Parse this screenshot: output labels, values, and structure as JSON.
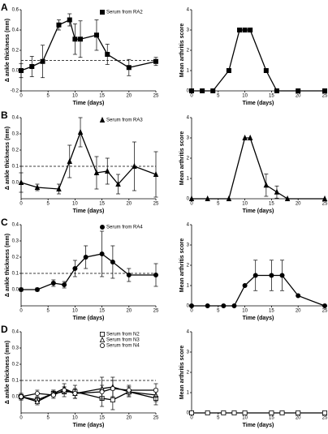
{
  "chart_data": [
    {
      "type": "line",
      "panel_label": "A",
      "x_label": "Time (days)",
      "y_label": "Δ ankle thickness (mm)",
      "xlim": [
        0,
        25
      ],
      "xticks": [
        0,
        5,
        10,
        15,
        20,
        25
      ],
      "ylim": [
        -0.2,
        0.6
      ],
      "yticks": [
        -0.2,
        {
          "value": 0,
          "label": "0.0"
        },
        0.2,
        0.4,
        0.6
      ],
      "hline": 0.1,
      "legend": "top-right",
      "x": [
        0,
        2,
        4,
        7,
        9,
        10,
        11,
        14,
        16,
        20,
        25
      ],
      "series": [
        {
          "name": "Serum from RA2",
          "color": "#000000",
          "marker": "square",
          "marker_fill": "#000000",
          "values": [
            0.0,
            0.04,
            0.09,
            0.45,
            0.5,
            0.31,
            0.31,
            0.35,
            0.16,
            0.03,
            0.09
          ],
          "errors": [
            0.07,
            0.1,
            0.16,
            0.05,
            0.06,
            0.15,
            0.18,
            0.15,
            0.1,
            0.08,
            0.04
          ]
        }
      ]
    },
    {
      "type": "line",
      "x_label": "Time (days)",
      "y_label": "Mean arthritis score",
      "xlim": [
        0,
        25
      ],
      "xticks": [
        0,
        5,
        10,
        15,
        20,
        25
      ],
      "ylim": [
        0,
        4
      ],
      "yticks": [
        0,
        1,
        2,
        3,
        4
      ],
      "x": [
        0,
        2,
        4,
        7,
        9,
        10,
        11,
        14,
        16,
        20,
        25
      ],
      "series": [
        {
          "color": "#000000",
          "marker": "square",
          "marker_fill": "#000000",
          "values": [
            0,
            0,
            0,
            1,
            3,
            3,
            3,
            1,
            0,
            0,
            0
          ]
        }
      ]
    },
    {
      "type": "line",
      "panel_label": "B",
      "x_label": "Time (days)",
      "y_label": "Δ ankle thickness (mm)",
      "xlim": [
        0,
        25
      ],
      "xticks": [
        0,
        5,
        10,
        15,
        20,
        25
      ],
      "ylim": [
        -0.1,
        0.4
      ],
      "yticks": [
        {
          "value": 0,
          "label": "0.0"
        },
        0.1,
        0.2,
        0.3,
        0.4
      ],
      "hline": 0.1,
      "legend": "top-right",
      "x": [
        0,
        3,
        7,
        9,
        11,
        14,
        16,
        18,
        21,
        25
      ],
      "series": [
        {
          "name": "Serum from RA3",
          "color": "#000000",
          "marker": "triangle",
          "marker_fill": "#000000",
          "values": [
            0.0,
            -0.03,
            -0.04,
            0.13,
            0.31,
            0.06,
            0.07,
            -0.01,
            0.1,
            0.05
          ],
          "errors": [
            0.06,
            0.02,
            0.03,
            0.1,
            0.09,
            0.1,
            0.08,
            0.06,
            0.15,
            0.14
          ]
        }
      ]
    },
    {
      "type": "line",
      "x_label": "Time (days)",
      "y_label": "Mean arthritis score",
      "xlim": [
        0,
        25
      ],
      "xticks": [
        0,
        5,
        10,
        15,
        20,
        25
      ],
      "ylim": [
        0,
        4
      ],
      "yticks": [
        0,
        1,
        2,
        3,
        4
      ],
      "x": [
        0,
        3,
        7,
        10,
        11,
        14,
        16,
        18,
        25
      ],
      "series": [
        {
          "color": "#000000",
          "marker": "triangle",
          "marker_fill": "#000000",
          "values": [
            0,
            0,
            0,
            3,
            3,
            0.67,
            0.33,
            0,
            0
          ],
          "errors": [
            null,
            null,
            null,
            null,
            null,
            0.55,
            0.3,
            null,
            null
          ]
        }
      ]
    },
    {
      "type": "line",
      "panel_label": "C",
      "x_label": "Time (days)",
      "y_label": "Δ ankle thickness (mm)",
      "xlim": [
        0,
        25
      ],
      "xticks": [
        0,
        5,
        10,
        15,
        20,
        25
      ],
      "ylim": [
        -0.1,
        0.4
      ],
      "yticks": [
        {
          "value": 0,
          "label": "0.0"
        },
        0.1,
        0.2,
        0.3,
        0.4
      ],
      "hline": 0.1,
      "legend": "top-right",
      "x": [
        0,
        3,
        6,
        8,
        10,
        12,
        15,
        17,
        20,
        25
      ],
      "series": [
        {
          "name": "Serum from RA4",
          "color": "#000000",
          "marker": "circle",
          "marker_fill": "#000000",
          "values": [
            0.0,
            0.0,
            0.04,
            0.03,
            0.13,
            0.2,
            0.22,
            0.17,
            0.09,
            0.09
          ],
          "errors": [
            0.01,
            0.01,
            0.02,
            0.02,
            0.05,
            0.07,
            0.14,
            0.1,
            0.04,
            0.07
          ]
        }
      ]
    },
    {
      "type": "line",
      "x_label": "Time (days)",
      "y_label": "Mean arthritis score",
      "xlim": [
        0,
        25
      ],
      "xticks": [
        0,
        5,
        10,
        15,
        20,
        25
      ],
      "ylim": [
        0,
        4
      ],
      "yticks": [
        0,
        1,
        2,
        3,
        4
      ],
      "x": [
        0,
        3,
        6,
        8,
        10,
        12,
        15,
        17,
        20,
        25
      ],
      "series": [
        {
          "color": "#000000",
          "marker": "circle",
          "marker_fill": "#000000",
          "values": [
            0,
            0,
            0,
            0,
            1,
            1.5,
            1.5,
            1.5,
            0.5,
            0
          ],
          "errors": [
            null,
            null,
            null,
            null,
            null,
            0.75,
            0.75,
            0.75,
            null,
            null
          ]
        }
      ]
    },
    {
      "type": "line",
      "panel_label": "D",
      "x_label": "Time (days)",
      "y_label": "Δ ankle thickness (mm)",
      "xlim": [
        0,
        25
      ],
      "xticks": [
        0,
        5,
        10,
        15,
        20,
        25
      ],
      "ylim": [
        -0.1,
        0.4
      ],
      "yticks": [
        {
          "value": 0,
          "label": "0.0"
        },
        0.1,
        0.2,
        0.3,
        0.4
      ],
      "hline": 0.1,
      "legend": "top-right",
      "x": [
        0,
        3,
        6,
        8,
        10,
        15,
        17,
        20,
        25
      ],
      "series": [
        {
          "name": "Serum from N2",
          "color": "#000000",
          "marker": "square",
          "marker_fill": "#ffffff",
          "values": [
            0.0,
            -0.02,
            0.02,
            0.03,
            0.03,
            -0.01,
            -0.02,
            0.03,
            -0.01
          ],
          "errors": [
            0.02,
            0.02,
            0.02,
            0.03,
            0.04,
            0.05,
            0.06,
            0.03,
            0.04
          ]
        },
        {
          "name": "Serum from N3",
          "color": "#000000",
          "marker": "triangle",
          "marker_fill": "#ffffff",
          "values": [
            0.0,
            -0.03,
            0.02,
            0.05,
            0.02,
            0.05,
            0.06,
            0.03,
            0.01
          ],
          "errors": [
            0.02,
            0.02,
            0.02,
            0.03,
            0.03,
            0.07,
            0.06,
            0.03,
            0.04
          ]
        },
        {
          "name": "Serum from N4",
          "color": "#000000",
          "marker": "circle",
          "marker_fill": "#ffffff",
          "values": [
            0.0,
            0.02,
            0.01,
            0.04,
            0.02,
            0.03,
            0.05,
            0.04,
            0.04
          ],
          "errors": [
            0.02,
            0.02,
            0.02,
            0.02,
            0.03,
            0.04,
            0.05,
            0.03,
            0.04
          ]
        }
      ]
    },
    {
      "type": "line",
      "x_label": "Time (days)",
      "y_label": "Mean arthritis score",
      "xlim": [
        0,
        25
      ],
      "xticks": [
        0,
        5,
        10,
        15,
        20,
        25
      ],
      "ylim": [
        0,
        4
      ],
      "yticks": [
        0,
        1,
        2,
        3,
        4
      ],
      "x": [
        0,
        3,
        6,
        8,
        10,
        15,
        17,
        20,
        25
      ],
      "series": [
        {
          "color": "#000000",
          "marker": "square",
          "marker_fill": "#ffffff",
          "values": [
            0,
            0,
            0,
            0,
            0,
            0,
            0,
            0,
            0
          ]
        }
      ]
    }
  ]
}
